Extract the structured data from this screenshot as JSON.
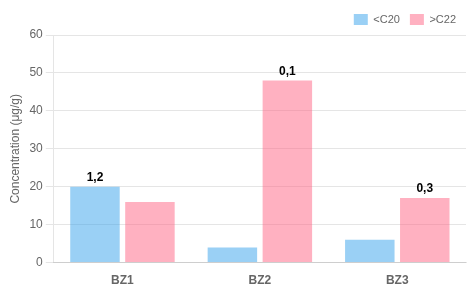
{
  "chart_data": {
    "type": "bar",
    "categories": [
      "BZ1",
      "BZ2",
      "BZ3"
    ],
    "series": [
      {
        "name": "<C20",
        "values": [
          20,
          4,
          6
        ]
      },
      {
        "name": ">C22",
        "values": [
          16,
          48,
          17
        ]
      }
    ],
    "annotations": [
      {
        "text": "1,2",
        "category": "BZ1",
        "series": "<C20"
      },
      {
        "text": "0,1",
        "category": "BZ2",
        "series": ">C22"
      },
      {
        "text": "0,3",
        "category": "BZ3",
        "series": ">C22"
      }
    ],
    "ylabel": "Concentration (μg/g)",
    "ylim": [
      0,
      60
    ],
    "yticks": [
      0,
      10,
      20,
      30,
      40,
      50,
      60
    ],
    "grid": true,
    "legend": "upper right"
  }
}
